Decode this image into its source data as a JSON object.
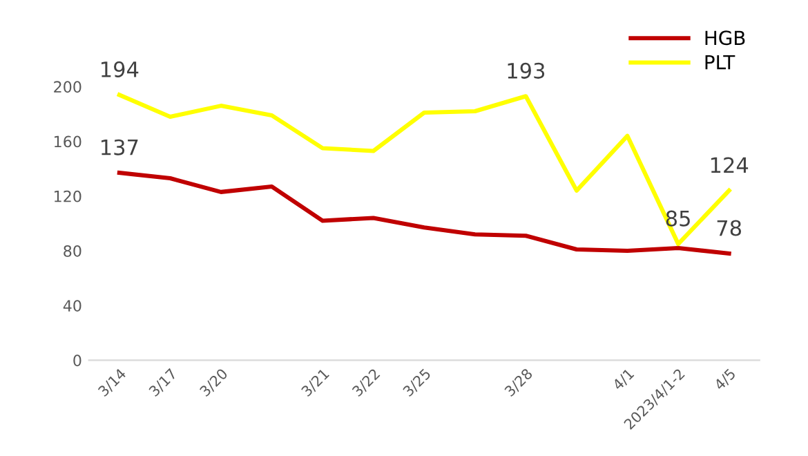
{
  "chart_data": {
    "type": "line",
    "categories": [
      "3/14",
      "3/17",
      "3/20",
      null,
      "3/21",
      "3/22",
      "3/25",
      null,
      "3/28",
      null,
      "4/1",
      "2023/4/1-2",
      "4/5"
    ],
    "series": [
      {
        "name": "HGB",
        "color": "#c00000",
        "values": [
          137,
          133,
          123,
          127,
          102,
          104,
          97,
          92,
          91,
          81,
          80,
          82,
          78
        ],
        "value_labels": [
          "137",
          null,
          null,
          null,
          null,
          null,
          null,
          null,
          null,
          null,
          null,
          null,
          "78"
        ]
      },
      {
        "name": "PLT",
        "color": "#ffff00",
        "values": [
          194,
          178,
          186,
          179,
          155,
          153,
          181,
          182,
          193,
          124,
          164,
          85,
          124
        ],
        "value_labels": [
          "194",
          null,
          null,
          null,
          null,
          null,
          null,
          null,
          "193",
          null,
          null,
          "85",
          "124"
        ]
      }
    ],
    "ylim": [
      0,
      200
    ],
    "yticks": [
      0,
      40,
      80,
      120,
      160,
      200
    ],
    "grid": false,
    "legend": "top right",
    "marker": "none",
    "line_style": "solid"
  }
}
